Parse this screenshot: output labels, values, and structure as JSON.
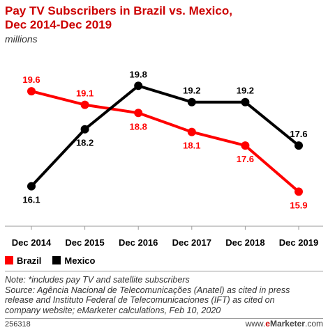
{
  "header": {
    "title_line1": "Pay TV Subscribers in Brazil vs. Mexico,",
    "title_line2": "Dec 2014-Dec 2019",
    "subtitle": "millions"
  },
  "chart_data": {
    "type": "line",
    "categories": [
      "Dec 2014",
      "Dec 2015",
      "Dec 2016",
      "Dec 2017",
      "Dec 2018",
      "Dec 2019"
    ],
    "series": [
      {
        "name": "Brazil",
        "color": "#ff0000",
        "values": [
          19.6,
          19.1,
          18.8,
          18.1,
          17.6,
          15.9
        ],
        "labels": [
          "19.6",
          "19.1",
          "18.8",
          "18.1",
          "17.6",
          "15.9"
        ]
      },
      {
        "name": "Mexico",
        "color": "#000000",
        "values": [
          16.1,
          18.2,
          19.8,
          19.2,
          19.2,
          17.6
        ],
        "labels": [
          "16.1",
          "18.2",
          "19.8",
          "19.2",
          "19.2",
          "17.6"
        ]
      }
    ],
    "ylim": [
      14.5,
      21.5
    ],
    "grid": false,
    "legend_position": "bottom-left"
  },
  "notes": {
    "line1": "Note: *includes pay TV and satellite subscribers",
    "line2": "Source: Agência Nacional de Telecomunicações (Anatel) as cited in press",
    "line3": "release and Instituto Federal de Telecomunicaciones (IFT) as cited on",
    "line4": "company website; eMarketer calculations, Feb 10, 2020"
  },
  "footer": {
    "chart_id": "256318",
    "brand_prefix": "www.",
    "brand_e": "e",
    "brand_marketer": "Marketer",
    "brand_suffix": ".com"
  }
}
